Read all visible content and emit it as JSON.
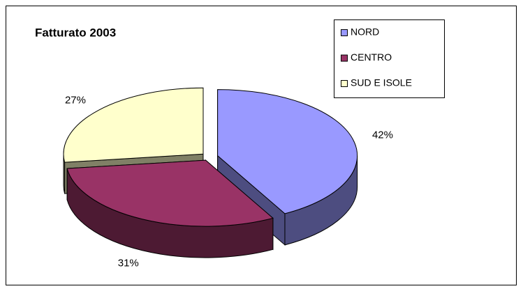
{
  "chart_data": {
    "type": "pie3d",
    "title": "Fatturato 2003",
    "categories": [
      "NORD",
      "CENTRO",
      "SUD E ISOLE"
    ],
    "values": [
      42,
      31,
      27
    ],
    "value_labels": [
      "42%",
      "31%",
      "27%"
    ],
    "colors": [
      "#9999ff",
      "#993366",
      "#ffffcc"
    ],
    "legend": "top-right"
  }
}
